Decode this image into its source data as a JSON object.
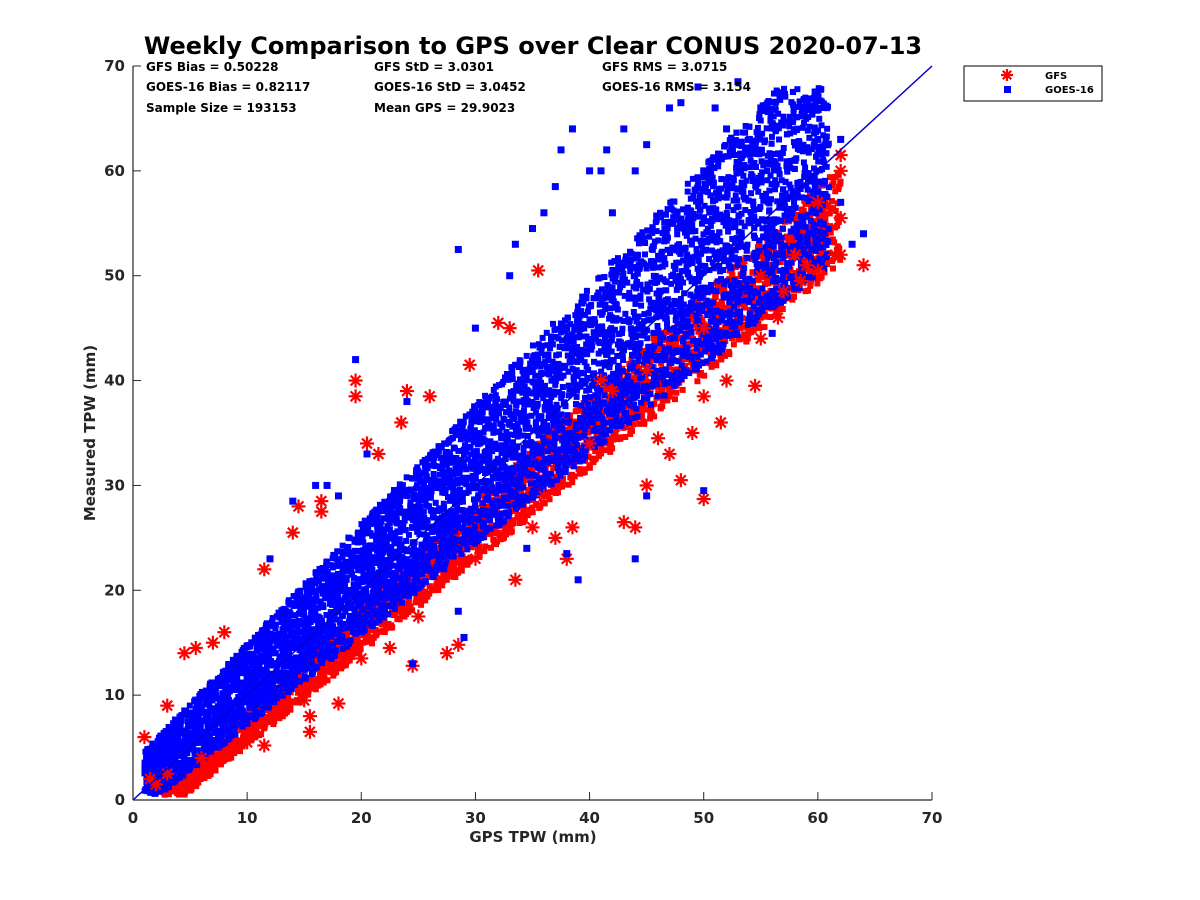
{
  "chart_data": {
    "type": "scatter",
    "title": "Weekly Comparison to GPS over Clear CONUS 2020-07-13",
    "xlabel": "GPS TPW (mm)",
    "ylabel": "Measured TPW (mm)",
    "xlim": [
      0,
      70
    ],
    "ylim": [
      0,
      70
    ],
    "xticks": [
      "0",
      "10",
      "20",
      "30",
      "40",
      "50",
      "60",
      "70"
    ],
    "yticks": [
      "0",
      "10",
      "20",
      "30",
      "40",
      "50",
      "60",
      "70"
    ],
    "reference_line": {
      "name": "1:1 line",
      "from": [
        0,
        0
      ],
      "to": [
        70,
        70
      ],
      "color": "#0000cc"
    },
    "stats": [
      {
        "label": "GFS Bias = 0.50228"
      },
      {
        "label": "GFS StD = 3.0301"
      },
      {
        "label": "GFS RMS = 3.0715"
      },
      {
        "label": "GOES-16 Bias = 0.82117"
      },
      {
        "label": "GOES-16 StD = 3.0452"
      },
      {
        "label": "GOES-16 RMS = 3.154"
      },
      {
        "label": "Sample Size = 193153"
      },
      {
        "label": "Mean GPS = 29.9023"
      }
    ],
    "legend_position": "outside-top-right",
    "series": [
      {
        "name": "GFS",
        "marker": "asterisk",
        "color": "#ff0000",
        "points": [
          [
            1,
            6
          ],
          [
            1.5,
            2
          ],
          [
            2,
            1.5
          ],
          [
            3,
            9
          ],
          [
            4.5,
            14
          ],
          [
            5.5,
            14.5
          ],
          [
            7,
            15
          ],
          [
            8,
            16
          ],
          [
            10,
            5.5
          ],
          [
            11.5,
            5.2
          ],
          [
            11.5,
            22
          ],
          [
            14,
            25.5
          ],
          [
            14.5,
            28
          ],
          [
            15.5,
            6.5
          ],
          [
            15.5,
            8
          ],
          [
            16.5,
            28.5
          ],
          [
            16.5,
            27.5
          ],
          [
            18,
            9.2
          ],
          [
            19.5,
            40
          ],
          [
            19.5,
            38.5
          ],
          [
            20.5,
            34
          ],
          [
            21.5,
            33
          ],
          [
            22.5,
            14.5
          ],
          [
            23.5,
            36
          ],
          [
            24,
            39
          ],
          [
            24.5,
            12.8
          ],
          [
            26,
            38.5
          ],
          [
            27.5,
            14
          ],
          [
            28.5,
            14.8
          ],
          [
            29.5,
            41.5
          ],
          [
            32,
            45.5
          ],
          [
            33,
            45
          ],
          [
            33.5,
            21
          ],
          [
            35.5,
            50.5
          ],
          [
            35,
            26
          ],
          [
            37,
            25
          ],
          [
            38,
            23
          ],
          [
            38.5,
            26
          ],
          [
            41,
            40
          ],
          [
            43,
            26.5
          ],
          [
            44,
            26
          ],
          [
            45,
            30
          ],
          [
            46,
            34.5
          ],
          [
            47,
            33
          ],
          [
            48,
            30.5
          ],
          [
            49,
            35
          ],
          [
            50,
            28.7
          ],
          [
            50,
            38.5
          ],
          [
            51.5,
            36
          ],
          [
            52,
            40
          ],
          [
            54.5,
            39.5
          ],
          [
            55,
            44
          ],
          [
            56.5,
            46
          ],
          [
            57,
            48.5
          ],
          [
            58.5,
            49.5
          ],
          [
            59,
            51
          ],
          [
            60,
            50.5
          ],
          [
            61.5,
            52
          ],
          [
            62,
            52
          ],
          [
            62,
            55.5
          ],
          [
            62,
            60
          ],
          [
            62,
            61.5
          ],
          [
            64,
            51
          ],
          [
            60,
            57
          ],
          [
            42,
            39
          ],
          [
            40,
            34
          ],
          [
            36,
            29
          ],
          [
            30,
            23
          ],
          [
            25,
            17.5
          ],
          [
            20,
            13.5
          ],
          [
            15,
            9.5
          ],
          [
            10,
            6
          ],
          [
            6,
            4
          ],
          [
            3,
            2.5
          ],
          [
            45,
            41
          ],
          [
            50,
            45
          ],
          [
            55,
            50
          ],
          [
            58,
            52
          ]
        ]
      },
      {
        "name": "GOES-16",
        "marker": "square",
        "color": "#0000ff",
        "points": [
          [
            19.5,
            42
          ],
          [
            20.5,
            33
          ],
          [
            24,
            38
          ],
          [
            28.5,
            52.5
          ],
          [
            30,
            45
          ],
          [
            33,
            50
          ],
          [
            33.5,
            53
          ],
          [
            35,
            54.5
          ],
          [
            36,
            56
          ],
          [
            37,
            58.5
          ],
          [
            37.5,
            62
          ],
          [
            38.5,
            64
          ],
          [
            39,
            21
          ],
          [
            40,
            60
          ],
          [
            41,
            60
          ],
          [
            41.5,
            62
          ],
          [
            42,
            56
          ],
          [
            43,
            64
          ],
          [
            44,
            60
          ],
          [
            45,
            62.5
          ],
          [
            47,
            66
          ],
          [
            48,
            66.5
          ],
          [
            49.5,
            68
          ],
          [
            50,
            60
          ],
          [
            51,
            66
          ],
          [
            52,
            64
          ],
          [
            53,
            68.5
          ],
          [
            54,
            63
          ],
          [
            55,
            66
          ],
          [
            56,
            64.5
          ],
          [
            58,
            61
          ],
          [
            59,
            62
          ],
          [
            60,
            63
          ],
          [
            62,
            63
          ],
          [
            62,
            57
          ],
          [
            63,
            53
          ],
          [
            64,
            54
          ],
          [
            56,
            44.5
          ],
          [
            45,
            29
          ],
          [
            50,
            29.5
          ],
          [
            44,
            23
          ],
          [
            38,
            23.5
          ],
          [
            34.5,
            24
          ],
          [
            32,
            27
          ],
          [
            28.5,
            18
          ],
          [
            24.5,
            13
          ],
          [
            29,
            15.5
          ],
          [
            12,
            23
          ],
          [
            14,
            28.5
          ],
          [
            16,
            30
          ],
          [
            17,
            30
          ],
          [
            18,
            29
          ],
          [
            60,
            58
          ],
          [
            36,
            36
          ],
          [
            31.5,
            31.5
          ],
          [
            26,
            26
          ],
          [
            21,
            21
          ],
          [
            16,
            16
          ],
          [
            11,
            11
          ]
        ]
      }
    ]
  }
}
